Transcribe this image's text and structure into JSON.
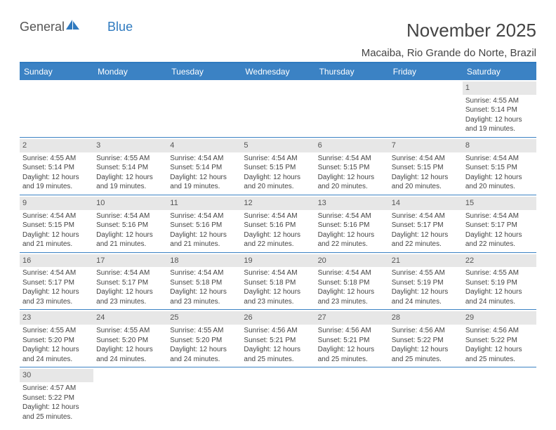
{
  "brand": {
    "part1": "General",
    "part2": "Blue"
  },
  "title": "November 2025",
  "location": "Macaiba, Rio Grande do Norte, Brazil",
  "colors": {
    "header_bg": "#3b82c4",
    "header_text": "#ffffff",
    "daynum_bg": "#e7e7e7",
    "border": "#3b82c4",
    "brand_blue": "#2f7abf",
    "text": "#444444"
  },
  "day_headers": [
    "Sunday",
    "Monday",
    "Tuesday",
    "Wednesday",
    "Thursday",
    "Friday",
    "Saturday"
  ],
  "weeks": [
    [
      null,
      null,
      null,
      null,
      null,
      null,
      {
        "n": "1",
        "sr": "4:55 AM",
        "ss": "5:14 PM",
        "dl": "12 hours and 19 minutes."
      }
    ],
    [
      {
        "n": "2",
        "sr": "4:55 AM",
        "ss": "5:14 PM",
        "dl": "12 hours and 19 minutes."
      },
      {
        "n": "3",
        "sr": "4:55 AM",
        "ss": "5:14 PM",
        "dl": "12 hours and 19 minutes."
      },
      {
        "n": "4",
        "sr": "4:54 AM",
        "ss": "5:14 PM",
        "dl": "12 hours and 19 minutes."
      },
      {
        "n": "5",
        "sr": "4:54 AM",
        "ss": "5:15 PM",
        "dl": "12 hours and 20 minutes."
      },
      {
        "n": "6",
        "sr": "4:54 AM",
        "ss": "5:15 PM",
        "dl": "12 hours and 20 minutes."
      },
      {
        "n": "7",
        "sr": "4:54 AM",
        "ss": "5:15 PM",
        "dl": "12 hours and 20 minutes."
      },
      {
        "n": "8",
        "sr": "4:54 AM",
        "ss": "5:15 PM",
        "dl": "12 hours and 20 minutes."
      }
    ],
    [
      {
        "n": "9",
        "sr": "4:54 AM",
        "ss": "5:15 PM",
        "dl": "12 hours and 21 minutes."
      },
      {
        "n": "10",
        "sr": "4:54 AM",
        "ss": "5:16 PM",
        "dl": "12 hours and 21 minutes."
      },
      {
        "n": "11",
        "sr": "4:54 AM",
        "ss": "5:16 PM",
        "dl": "12 hours and 21 minutes."
      },
      {
        "n": "12",
        "sr": "4:54 AM",
        "ss": "5:16 PM",
        "dl": "12 hours and 22 minutes."
      },
      {
        "n": "13",
        "sr": "4:54 AM",
        "ss": "5:16 PM",
        "dl": "12 hours and 22 minutes."
      },
      {
        "n": "14",
        "sr": "4:54 AM",
        "ss": "5:17 PM",
        "dl": "12 hours and 22 minutes."
      },
      {
        "n": "15",
        "sr": "4:54 AM",
        "ss": "5:17 PM",
        "dl": "12 hours and 22 minutes."
      }
    ],
    [
      {
        "n": "16",
        "sr": "4:54 AM",
        "ss": "5:17 PM",
        "dl": "12 hours and 23 minutes."
      },
      {
        "n": "17",
        "sr": "4:54 AM",
        "ss": "5:17 PM",
        "dl": "12 hours and 23 minutes."
      },
      {
        "n": "18",
        "sr": "4:54 AM",
        "ss": "5:18 PM",
        "dl": "12 hours and 23 minutes."
      },
      {
        "n": "19",
        "sr": "4:54 AM",
        "ss": "5:18 PM",
        "dl": "12 hours and 23 minutes."
      },
      {
        "n": "20",
        "sr": "4:54 AM",
        "ss": "5:18 PM",
        "dl": "12 hours and 23 minutes."
      },
      {
        "n": "21",
        "sr": "4:55 AM",
        "ss": "5:19 PM",
        "dl": "12 hours and 24 minutes."
      },
      {
        "n": "22",
        "sr": "4:55 AM",
        "ss": "5:19 PM",
        "dl": "12 hours and 24 minutes."
      }
    ],
    [
      {
        "n": "23",
        "sr": "4:55 AM",
        "ss": "5:20 PM",
        "dl": "12 hours and 24 minutes."
      },
      {
        "n": "24",
        "sr": "4:55 AM",
        "ss": "5:20 PM",
        "dl": "12 hours and 24 minutes."
      },
      {
        "n": "25",
        "sr": "4:55 AM",
        "ss": "5:20 PM",
        "dl": "12 hours and 24 minutes."
      },
      {
        "n": "26",
        "sr": "4:56 AM",
        "ss": "5:21 PM",
        "dl": "12 hours and 25 minutes."
      },
      {
        "n": "27",
        "sr": "4:56 AM",
        "ss": "5:21 PM",
        "dl": "12 hours and 25 minutes."
      },
      {
        "n": "28",
        "sr": "4:56 AM",
        "ss": "5:22 PM",
        "dl": "12 hours and 25 minutes."
      },
      {
        "n": "29",
        "sr": "4:56 AM",
        "ss": "5:22 PM",
        "dl": "12 hours and 25 minutes."
      }
    ],
    [
      {
        "n": "30",
        "sr": "4:57 AM",
        "ss": "5:22 PM",
        "dl": "12 hours and 25 minutes."
      },
      null,
      null,
      null,
      null,
      null,
      null
    ]
  ],
  "labels": {
    "sunrise": "Sunrise: ",
    "sunset": "Sunset: ",
    "daylight": "Daylight: "
  }
}
